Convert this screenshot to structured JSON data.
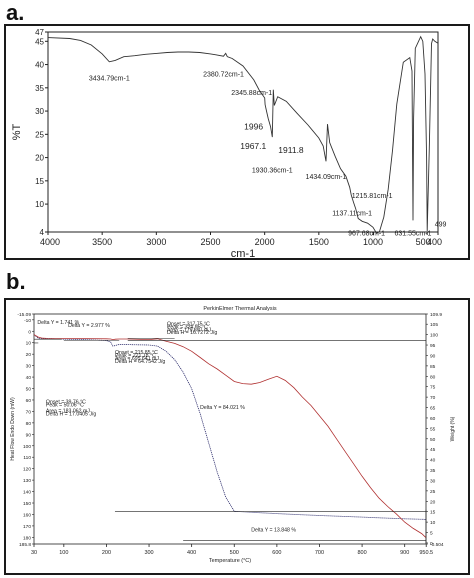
{
  "panel_labels": [
    "a.",
    "b."
  ],
  "chart_data": [
    {
      "type": "line",
      "xlabel": "cm-1",
      "ylabel": "%T",
      "xlim": [
        4000,
        400
      ],
      "ylim": [
        4,
        47
      ],
      "x_ticks": [
        "4000",
        "3500",
        "3000",
        "2500",
        "2000",
        "1500",
        "1000",
        "500",
        "400"
      ],
      "x_tick_values": [
        4000,
        3500,
        3000,
        2500,
        2000,
        1500,
        1000,
        500,
        400
      ],
      "y_ticks": [
        "4",
        "10",
        "15",
        "20",
        "25",
        "30",
        "35",
        "40",
        "45",
        "47"
      ],
      "y_tick_values": [
        4,
        10,
        15,
        20,
        25,
        30,
        35,
        40,
        45,
        47
      ],
      "series": [
        {
          "x": [
            4000,
            3800,
            3700,
            3600,
            3500,
            3434,
            3380,
            3300,
            3200,
            3100,
            3000,
            2900,
            2800,
            2700,
            2600,
            2500,
            2450,
            2380,
            2360,
            2345,
            2300,
            2200,
            2100,
            2050,
            2000,
            1996,
            1985,
            1967,
            1945,
            1930,
            1920,
            1911,
            1880,
            1800,
            1700,
            1600,
            1500,
            1460,
            1434,
            1420,
            1400,
            1350,
            1300,
            1250,
            1215,
            1200,
            1180,
            1160,
            1137,
            1100,
            1050,
            1000,
            967,
            940,
            900,
            860,
            820,
            780,
            720,
            660,
            640,
            631,
            625,
            610,
            560,
            540,
            520,
            505,
            500,
            480,
            460,
            449,
            430,
            400
          ],
          "y": [
            45.8,
            45.6,
            45.2,
            44.2,
            42.3,
            40.6,
            40.9,
            41.7,
            41.9,
            42.2,
            42.4,
            42.6,
            42.7,
            42.7,
            42.6,
            42.3,
            42.1,
            41.8,
            42.4,
            41.7,
            41.3,
            39.7,
            36.7,
            34.5,
            32.8,
            31.4,
            30.2,
            28.4,
            26.6,
            24.4,
            34.6,
            31.2,
            33.1,
            32.1,
            29.5,
            27.0,
            24.2,
            22.5,
            19.2,
            27.2,
            23.2,
            20.3,
            17.6,
            16.0,
            13.6,
            11.9,
            10.4,
            9.0,
            6.9,
            6.3,
            5.9,
            5.0,
            3.7,
            4.1,
            7.2,
            13.2,
            21.5,
            31.5,
            40.5,
            41.5,
            38.6,
            6.5,
            28.5,
            43.5,
            46.0,
            45.0,
            38.0,
            20.0,
            4.2,
            22.0,
            44.5,
            45.5,
            45.0,
            44.6
          ]
        }
      ],
      "annotations": [
        "3434.79cm-1",
        "2380.72cm-1",
        "2345.88cm-1",
        "1996",
        "1967.1",
        "1930.36cm-1",
        "1911.8",
        "1434.09cm-1",
        "1215.81cm-1",
        "1137.11cm-1",
        "967.68cm-1",
        "631.55cm-1",
        "499"
      ]
    },
    {
      "type": "line",
      "title": "PerkinElmer Thermal Analysis",
      "xlabel": "Temperature (°C)",
      "ylabel_left": "Heat Flow Endo Down (mW)",
      "ylabel_right": "Weight (%)",
      "xlim": [
        30,
        950
      ],
      "x_ticks": [
        "30",
        "100",
        "200",
        "300",
        "400",
        "500",
        "600",
        "700",
        "800",
        "900",
        "950.5"
      ],
      "x_tick_values": [
        30,
        100,
        200,
        300,
        400,
        500,
        600,
        700,
        800,
        900,
        950.5
      ],
      "y_left_ticks": [
        "-15.09",
        "-10",
        "0",
        "10",
        "20",
        "30",
        "40",
        "50",
        "60",
        "70",
        "80",
        "90",
        "100",
        "110",
        "120",
        "130",
        "140",
        "150",
        "160",
        "170",
        "180",
        "185.8"
      ],
      "y_left_values": [
        -15.09,
        -10,
        0,
        10,
        20,
        30,
        40,
        50,
        60,
        70,
        80,
        90,
        100,
        110,
        120,
        130,
        140,
        150,
        160,
        170,
        180,
        185.8
      ],
      "y_right_ticks": [
        "109.9",
        "105",
        "100",
        "95",
        "90",
        "85",
        "80",
        "75",
        "70",
        "65",
        "60",
        "55",
        "50",
        "45",
        "40",
        "35",
        "30",
        "25",
        "20",
        "15",
        "10",
        "5",
        "0",
        "-0.504"
      ],
      "y_right_values": [
        109.9,
        105,
        100,
        95,
        90,
        85,
        80,
        75,
        70,
        65,
        60,
        55,
        50,
        45,
        40,
        35,
        30,
        25,
        20,
        15,
        10,
        5,
        0,
        -0.504
      ],
      "series": [
        {
          "color": "#2a2a6a",
          "axis": "right",
          "x": [
            30,
            40,
            50,
            60,
            80,
            100,
            150,
            200,
            210,
            215,
            221,
            230,
            250,
            300,
            320,
            340,
            360,
            380,
            400,
            420,
            440,
            460,
            480,
            500,
            550,
            600,
            650,
            700,
            750,
            800,
            850,
            900,
            950
          ],
          "y": [
            100,
            98.3,
            98.1,
            98.0,
            97.9,
            97.8,
            97.6,
            97.2,
            96.4,
            94.5,
            94.8,
            95.3,
            95.2,
            95.0,
            94.5,
            92.0,
            88.0,
            82.0,
            74.0,
            62.0,
            48.0,
            34.0,
            22.0,
            15.2,
            14.6,
            14.1,
            13.6,
            13.2,
            12.8,
            12.4,
            12.0,
            11.6,
            11.3
          ]
        },
        {
          "color": "#b03030",
          "axis": "right",
          "x": [
            30,
            40,
            50,
            60,
            80,
            100,
            150,
            200,
            210,
            215,
            221,
            230,
            250,
            300,
            320,
            340,
            360,
            380,
            400,
            420,
            440,
            460,
            480,
            500,
            520,
            540,
            560,
            580,
            600,
            620,
            640,
            660,
            680,
            700,
            720,
            740,
            760,
            780,
            800,
            820,
            840,
            860,
            880,
            900,
            920,
            940,
            950
          ],
          "y": [
            100,
            98.8,
            98.3,
            98.2,
            98.1,
            98.1,
            98.1,
            98.0,
            97.9,
            97.6,
            97.8,
            97.9,
            97.9,
            97.6,
            98.0,
            96.8,
            95.8,
            94.2,
            92.0,
            89.0,
            86.0,
            83.5,
            80.5,
            77.5,
            76.5,
            76.2,
            77.0,
            78.6,
            80.0,
            78.0,
            74.5,
            70.0,
            66.0,
            61.0,
            56.0,
            50.0,
            44.0,
            38.0,
            32.0,
            26.5,
            21.5,
            17.5,
            14.0,
            10.0,
            7.0,
            4.5,
            2.5
          ]
        }
      ],
      "annotations": [
        "Delta Y = 1.741 %",
        "Delta Y = 2.977 %",
        "Onset = 317.75 °C",
        "Peak = 324.95 °C",
        "Area = 179.697 mJ",
        "Delta H = 16.7272 J/g",
        "Onset = 215.85 °C",
        "Peak = 221.18 °C",
        "Area = 695.641 mJ",
        "Delta H = 64.7542 J/g",
        "Onset = 39.76 °C",
        "Peak = 50.06 °C",
        "Area = 183.062 mJ",
        "Delta H = 17.0405 J/g",
        "Delta Y = 84.021 %",
        "Delta Y = 13.848 %"
      ]
    }
  ]
}
